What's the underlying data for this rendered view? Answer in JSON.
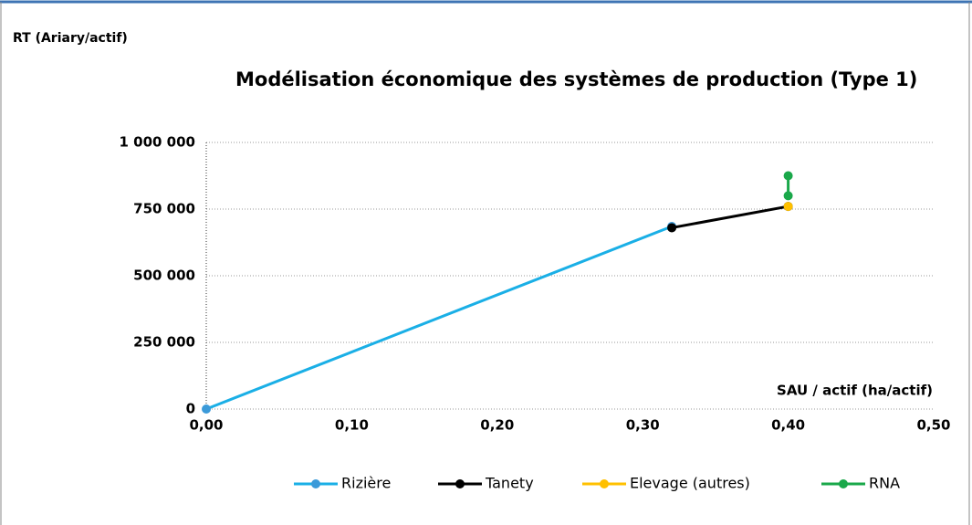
{
  "chart_data": {
    "type": "line",
    "title": "Modélisation économique des systèmes de production (Type 1)",
    "y_label": "RT (Ariary/actif)",
    "x_label": "SAU / actif (ha/actif)",
    "series": [
      {
        "name": "Rizière",
        "color": "#1aafe6",
        "marker_color": "#3b9ad9",
        "x": [
          0,
          0.32
        ],
        "values": [
          0,
          685000
        ]
      },
      {
        "name": "Tanety",
        "color": "#000000",
        "marker_color": "#000000",
        "x": [
          0.32,
          0.4
        ],
        "values": [
          680000,
          760000
        ]
      },
      {
        "name": "Elevage (autres)",
        "color": "#ffc000",
        "marker_color": "#ffc000",
        "x": [
          0.4
        ],
        "values": [
          760000
        ]
      },
      {
        "name": "RNA",
        "color": "#1aa84a",
        "marker_color": "#1aa84a",
        "x": [
          0.4,
          0.4
        ],
        "values": [
          800000,
          875000
        ]
      }
    ],
    "xlim": [
      0,
      0.5
    ],
    "xticks": [
      {
        "value": 0,
        "label": "0,00"
      },
      {
        "value": 0.1,
        "label": "0,10"
      },
      {
        "value": 0.2,
        "label": "0,20"
      },
      {
        "value": 0.3,
        "label": "0,30"
      },
      {
        "value": 0.4,
        "label": "0,40"
      },
      {
        "value": 0.5,
        "label": "0,50"
      }
    ],
    "ylim": [
      0,
      1000000
    ],
    "yticks": [
      0,
      {
        "value": 250000,
        "label": "250 000"
      },
      {
        "value": 500000,
        "label": "500 000"
      },
      {
        "value": 750000,
        "label": "750 000"
      },
      {
        "value": 1000000,
        "label": "1 000 000"
      }
    ],
    "grid": true,
    "legend": "bottom"
  }
}
